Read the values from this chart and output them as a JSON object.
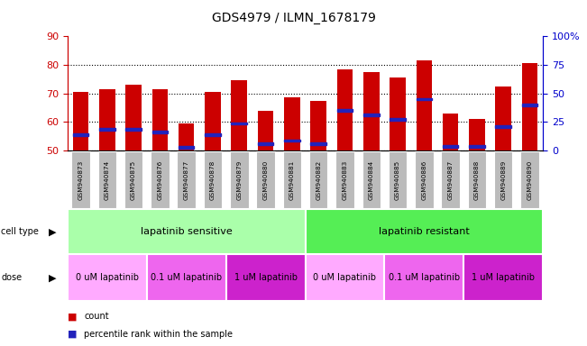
{
  "title": "GDS4979 / ILMN_1678179",
  "samples": [
    "GSM940873",
    "GSM940874",
    "GSM940875",
    "GSM940876",
    "GSM940877",
    "GSM940878",
    "GSM940879",
    "GSM940880",
    "GSM940881",
    "GSM940882",
    "GSM940883",
    "GSM940884",
    "GSM940885",
    "GSM940886",
    "GSM940887",
    "GSM940888",
    "GSM940889",
    "GSM940890"
  ],
  "bar_heights": [
    70.5,
    71.5,
    73.0,
    71.5,
    59.5,
    70.5,
    74.5,
    64.0,
    68.5,
    67.5,
    78.5,
    77.5,
    75.5,
    81.5,
    63.0,
    61.0,
    72.5,
    80.5
  ],
  "blue_markers": [
    55.5,
    57.5,
    57.5,
    56.5,
    51.0,
    55.5,
    59.5,
    52.5,
    53.5,
    52.5,
    64.0,
    62.5,
    61.0,
    68.0,
    51.5,
    51.5,
    58.5,
    66.0
  ],
  "bar_color": "#cc0000",
  "blue_color": "#2222bb",
  "ymin": 50.0,
  "ymax": 90.0,
  "yticks_left": [
    50,
    60,
    70,
    80,
    90
  ],
  "right_pct_ticks": [
    0,
    25,
    50,
    75,
    100
  ],
  "right_pct_labels": [
    "0",
    "25",
    "50",
    "75",
    "100%"
  ],
  "bar_width": 0.6,
  "cell_type_groups": [
    {
      "label": "lapatinib sensitive",
      "start": 0,
      "end": 9,
      "color": "#aaffaa"
    },
    {
      "label": "lapatinib resistant",
      "start": 9,
      "end": 18,
      "color": "#55ee55"
    }
  ],
  "dose_groups": [
    {
      "label": "0 uM lapatinib",
      "start": 0,
      "end": 3,
      "color": "#ffaaff"
    },
    {
      "label": "0.1 uM lapatinib",
      "start": 3,
      "end": 6,
      "color": "#ee66ee"
    },
    {
      "label": "1 uM lapatinib",
      "start": 6,
      "end": 9,
      "color": "#cc22cc"
    },
    {
      "label": "0 uM lapatinib",
      "start": 9,
      "end": 12,
      "color": "#ffaaff"
    },
    {
      "label": "0.1 uM lapatinib",
      "start": 12,
      "end": 15,
      "color": "#ee66ee"
    },
    {
      "label": "1 uM lapatinib",
      "start": 15,
      "end": 18,
      "color": "#cc22cc"
    }
  ],
  "tick_color_left": "#cc0000",
  "tick_color_right": "#0000cc",
  "xtick_box_color": "#bbbbbb",
  "legend_count_color": "#cc0000",
  "legend_pct_color": "#2222bb"
}
